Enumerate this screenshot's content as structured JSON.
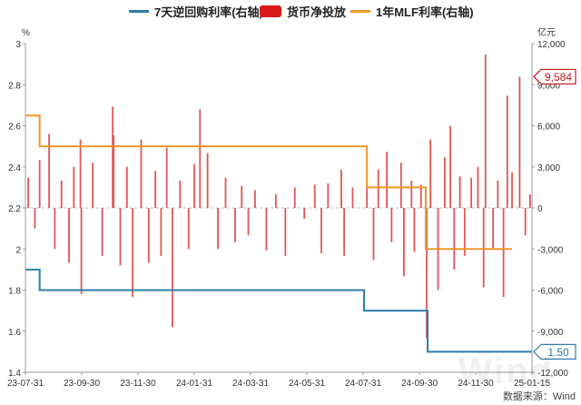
{
  "legend": {
    "repo7": "7天逆回购利率(右轴)",
    "net": "货币净投放",
    "mlf": "1年MLF利率(右轴)"
  },
  "source": "数据来源：Wind",
  "watermark": "Wind",
  "colors": {
    "repo7": "#2e7ca6",
    "mlf": "#f0962a",
    "bars": "#e05555",
    "legend_net": "#d71a1a",
    "badge_net": "#c8171e",
    "badge_rate": "#2e7ca6"
  },
  "chart_data": {
    "type": "bar+line",
    "left_axis": {
      "unit": "%",
      "min": 1.4,
      "max": 3.0,
      "ticks": [
        "1.4",
        "1.6",
        "1.8",
        "2",
        "2.2",
        "2.4",
        "2.6",
        "2.8",
        "3"
      ]
    },
    "right_axis": {
      "unit": "亿元",
      "min": -12000,
      "max": 12000,
      "ticks": [
        "-12,000",
        "-9,000",
        "-6,000",
        "-3,000",
        "0",
        "3,000",
        "6,000",
        "9,000",
        "12,000"
      ]
    },
    "x_ticks": [
      "23-07-31",
      "23-09-30",
      "23-11-30",
      "24-01-31",
      "24-03-31",
      "24-05-31",
      "24-07-31",
      "24-09-30",
      "24-11-30",
      "25-01-15"
    ],
    "x_range": [
      "2023-07-31",
      "2025-01-15"
    ],
    "series": [
      {
        "name": "7天逆回购利率(右轴)",
        "type": "step-line",
        "axis": "left",
        "points": [
          [
            "2023-07-31",
            1.9
          ],
          [
            "2023-08-15",
            1.8
          ],
          [
            "2024-07-22",
            1.7
          ],
          [
            "2024-09-27",
            1.5
          ],
          [
            "2025-01-15",
            1.5
          ]
        ]
      },
      {
        "name": "1年MLF利率(右轴)",
        "type": "step-line",
        "axis": "left",
        "points": [
          [
            "2023-07-31",
            2.65
          ],
          [
            "2023-08-15",
            2.5
          ],
          [
            "2024-07-25",
            2.3
          ],
          [
            "2024-09-25",
            2.0
          ],
          [
            "2024-12-25",
            2.0
          ]
        ]
      },
      {
        "name": "货币净投放",
        "type": "bar",
        "axis": "right",
        "points": [
          [
            "2023-08-03",
            2200
          ],
          [
            "2023-08-10",
            -1500
          ],
          [
            "2023-08-15",
            3500
          ],
          [
            "2023-08-25",
            5400
          ],
          [
            "2023-08-31",
            -3000
          ],
          [
            "2023-09-07",
            2000
          ],
          [
            "2023-09-15",
            -4000
          ],
          [
            "2023-09-20",
            3000
          ],
          [
            "2023-09-27",
            5000
          ],
          [
            "2023-09-28",
            -6300
          ],
          [
            "2023-10-10",
            3300
          ],
          [
            "2023-10-20",
            -3500
          ],
          [
            "2023-10-31",
            7400
          ],
          [
            "2023-11-01",
            5300
          ],
          [
            "2023-11-08",
            -4200
          ],
          [
            "2023-11-15",
            3000
          ],
          [
            "2023-11-21",
            -6500
          ],
          [
            "2023-11-30",
            5000
          ],
          [
            "2023-12-08",
            -4000
          ],
          [
            "2023-12-15",
            2700
          ],
          [
            "2023-12-21",
            -3500
          ],
          [
            "2023-12-27",
            4400
          ],
          [
            "2024-01-02",
            -8700
          ],
          [
            "2024-01-10",
            2000
          ],
          [
            "2024-01-19",
            -3000
          ],
          [
            "2024-01-25",
            3200
          ],
          [
            "2024-01-31",
            7200
          ],
          [
            "2024-02-08",
            4000
          ],
          [
            "2024-02-19",
            -3000
          ],
          [
            "2024-02-27",
            2200
          ],
          [
            "2024-03-08",
            -2500
          ],
          [
            "2024-03-15",
            1600
          ],
          [
            "2024-03-22",
            -2000
          ],
          [
            "2024-03-29",
            1300
          ],
          [
            "2024-04-10",
            -3100
          ],
          [
            "2024-04-20",
            1000
          ],
          [
            "2024-04-30",
            -3500
          ],
          [
            "2024-05-10",
            1500
          ],
          [
            "2024-05-20",
            -800
          ],
          [
            "2024-05-31",
            1700
          ],
          [
            "2024-06-07",
            -3300
          ],
          [
            "2024-06-14",
            1800
          ],
          [
            "2024-06-28",
            2800
          ],
          [
            "2024-07-01",
            -3500
          ],
          [
            "2024-07-10",
            1500
          ],
          [
            "2024-07-25",
            1700
          ],
          [
            "2024-08-01",
            -3800
          ],
          [
            "2024-08-06",
            2800
          ],
          [
            "2024-08-15",
            4100
          ],
          [
            "2024-08-20",
            -2500
          ],
          [
            "2024-08-30",
            3300
          ],
          [
            "2024-09-02",
            -5000
          ],
          [
            "2024-09-10",
            2000
          ],
          [
            "2024-09-13",
            -3200
          ],
          [
            "2024-09-20",
            1700
          ],
          [
            "2024-09-26",
            -9500
          ],
          [
            "2024-09-30",
            5000
          ],
          [
            "2024-10-08",
            -6000
          ],
          [
            "2024-10-15",
            3700
          ],
          [
            "2024-10-21",
            6000
          ],
          [
            "2024-10-25",
            -4500
          ],
          [
            "2024-10-31",
            2300
          ],
          [
            "2024-11-05",
            -3500
          ],
          [
            "2024-11-12",
            2200
          ],
          [
            "2024-11-19",
            3000
          ],
          [
            "2024-11-25",
            -5800
          ],
          [
            "2024-11-27",
            11200
          ],
          [
            "2024-12-05",
            -3000
          ],
          [
            "2024-12-10",
            2000
          ],
          [
            "2024-12-16",
            -6500
          ],
          [
            "2024-12-20",
            8200
          ],
          [
            "2024-12-25",
            2600
          ],
          [
            "2025-01-02",
            9584
          ],
          [
            "2025-01-08",
            -2000
          ],
          [
            "2025-01-13",
            1000
          ]
        ]
      }
    ],
    "badges": {
      "net_latest": "9,584",
      "repo_latest": "1.50"
    }
  }
}
